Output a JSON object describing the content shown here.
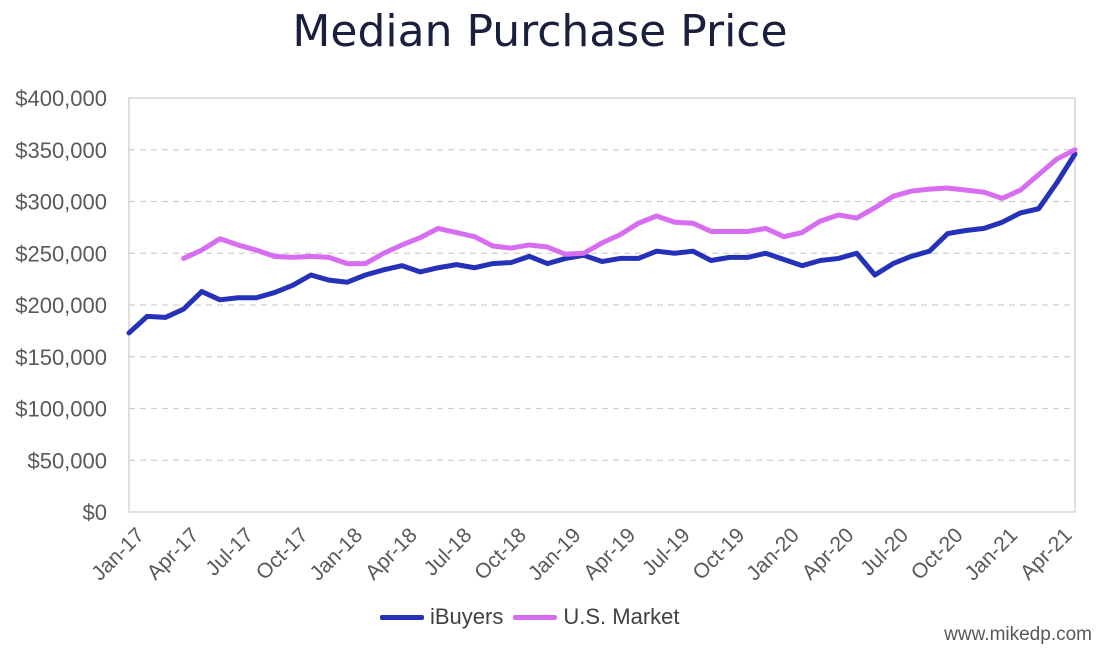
{
  "watermark": "www.mikedp.com",
  "chart_data": {
    "type": "line",
    "title": "Median Purchase Price",
    "xlabel": "",
    "ylabel": "",
    "ylim": [
      0,
      400000
    ],
    "y_ticks": [
      0,
      50000,
      100000,
      150000,
      200000,
      250000,
      300000,
      350000,
      400000
    ],
    "y_tick_labels": [
      "$0",
      "$50,000",
      "$100,000",
      "$150,000",
      "$200,000",
      "$250,000",
      "$300,000",
      "$350,000",
      "$400,000"
    ],
    "x": [
      "Jan-17",
      "Feb-17",
      "Mar-17",
      "Apr-17",
      "May-17",
      "Jun-17",
      "Jul-17",
      "Aug-17",
      "Sep-17",
      "Oct-17",
      "Nov-17",
      "Dec-17",
      "Jan-18",
      "Feb-18",
      "Mar-18",
      "Apr-18",
      "May-18",
      "Jun-18",
      "Jul-18",
      "Aug-18",
      "Sep-18",
      "Oct-18",
      "Nov-18",
      "Dec-18",
      "Jan-19",
      "Feb-19",
      "Mar-19",
      "Apr-19",
      "May-19",
      "Jun-19",
      "Jul-19",
      "Aug-19",
      "Sep-19",
      "Oct-19",
      "Nov-19",
      "Dec-19",
      "Jan-20",
      "Feb-20",
      "Mar-20",
      "Apr-20",
      "May-20",
      "Jun-20",
      "Jul-20",
      "Aug-20",
      "Sep-20",
      "Oct-20",
      "Nov-20",
      "Dec-20",
      "Jan-21",
      "Feb-21",
      "Mar-21",
      "Apr-21",
      "May-21"
    ],
    "x_tick_labels": [
      "Jan-17",
      "Apr-17",
      "Jul-17",
      "Oct-17",
      "Jan-18",
      "Apr-18",
      "Jul-18",
      "Oct-18",
      "Jan-19",
      "Apr-19",
      "Jul-19",
      "Oct-19",
      "Jan-20",
      "Apr-20",
      "Jul-20",
      "Oct-20",
      "Jan-21",
      "Apr-21"
    ],
    "grid": true,
    "legend_position": "bottom",
    "series": [
      {
        "name": "iBuyers",
        "color": "#2531b8",
        "values": [
          173000,
          189000,
          188000,
          196000,
          213000,
          205000,
          207000,
          207000,
          212000,
          219000,
          229000,
          224000,
          222000,
          229000,
          234000,
          238000,
          232000,
          236000,
          239000,
          236000,
          240000,
          241000,
          247000,
          240000,
          245000,
          248000,
          242000,
          245000,
          245000,
          252000,
          250000,
          252000,
          243000,
          246000,
          246000,
          250000,
          244000,
          238000,
          243000,
          245000,
          250000,
          229000,
          240000,
          247000,
          252000,
          269000,
          272000,
          274000,
          280000,
          289000,
          293000,
          318000,
          346000
        ]
      },
      {
        "name": "U.S. Market",
        "color": "#d76df0",
        "values": [
          null,
          null,
          null,
          245000,
          253000,
          264000,
          258000,
          253000,
          247000,
          246000,
          247000,
          246000,
          240000,
          240000,
          250000,
          258000,
          265000,
          274000,
          270000,
          266000,
          257000,
          255000,
          258000,
          256000,
          249000,
          250000,
          260000,
          268000,
          279000,
          286000,
          280000,
          279000,
          271000,
          271000,
          271000,
          274000,
          266000,
          270000,
          281000,
          287000,
          284000,
          294000,
          305000,
          310000,
          312000,
          313000,
          311000,
          309000,
          303000,
          311000,
          326000,
          341000,
          350000
        ]
      }
    ]
  }
}
